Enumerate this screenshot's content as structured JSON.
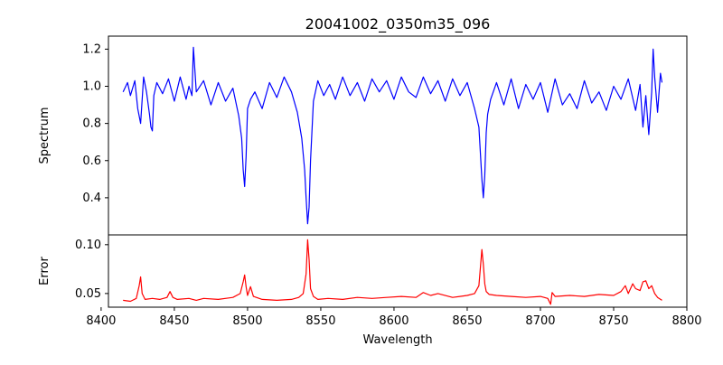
{
  "chart_data": {
    "type": "line",
    "title": "20041002_0350m35_096",
    "xlabel": "Wavelength",
    "xlim": [
      8405,
      8800
    ],
    "x_ticks": [
      8400,
      8450,
      8500,
      8550,
      8600,
      8650,
      8700,
      8750,
      8800
    ],
    "x_tick_labels": [
      "8400",
      "8450",
      "8500",
      "8550",
      "8600",
      "8650",
      "8700",
      "8750",
      "8800"
    ],
    "panels": [
      {
        "ylabel": "Spectrum",
        "ylim": [
          0.2,
          1.27
        ],
        "y_ticks": [
          0.4,
          0.6,
          0.8,
          1.0,
          1.2
        ],
        "y_tick_labels": [
          "0.4",
          "0.6",
          "0.8",
          "1.0",
          "1.2"
        ],
        "series": [
          {
            "color": "#0000ff",
            "x": [
              8415,
              8418,
              8420,
              8423,
              8425,
              8427,
              8429,
              8431,
              8433,
              8434,
              8435,
              8436,
              8438,
              8442,
              8446,
              8450,
              8454,
              8458,
              8460,
              8462,
              8463,
              8465,
              8470,
              8475,
              8480,
              8485,
              8490,
              8494,
              8496,
              8497,
              8498,
              8499,
              8500,
              8502,
              8505,
              8510,
              8515,
              8520,
              8525,
              8530,
              8534,
              8537,
              8539,
              8540,
              8541,
              8542,
              8543,
              8545,
              8548,
              8552,
              8556,
              8560,
              8565,
              8570,
              8575,
              8580,
              8585,
              8590,
              8595,
              8600,
              8605,
              8610,
              8615,
              8620,
              8625,
              8630,
              8635,
              8640,
              8645,
              8650,
              8655,
              8658,
              8660,
              8661,
              8662,
              8663,
              8664,
              8666,
              8670,
              8675,
              8680,
              8685,
              8690,
              8695,
              8700,
              8705,
              8710,
              8715,
              8720,
              8725,
              8730,
              8735,
              8740,
              8745,
              8750,
              8755,
              8760,
              8765,
              8768,
              8770,
              8772,
              8774,
              8776,
              8777,
              8778,
              8780,
              8782,
              8783
            ],
            "y": [
              0.97,
              1.02,
              0.95,
              1.03,
              0.88,
              0.8,
              1.05,
              0.97,
              0.85,
              0.78,
              0.76,
              0.95,
              1.02,
              0.96,
              1.04,
              0.92,
              1.05,
              0.93,
              1.0,
              0.95,
              1.21,
              0.97,
              1.03,
              0.9,
              1.02,
              0.92,
              0.99,
              0.84,
              0.72,
              0.55,
              0.46,
              0.62,
              0.88,
              0.93,
              0.97,
              0.88,
              1.02,
              0.94,
              1.05,
              0.97,
              0.86,
              0.72,
              0.55,
              0.4,
              0.26,
              0.35,
              0.6,
              0.92,
              1.03,
              0.95,
              1.01,
              0.93,
              1.05,
              0.95,
              1.02,
              0.92,
              1.04,
              0.97,
              1.03,
              0.93,
              1.05,
              0.97,
              0.94,
              1.05,
              0.96,
              1.03,
              0.92,
              1.04,
              0.95,
              1.02,
              0.88,
              0.78,
              0.5,
              0.4,
              0.52,
              0.75,
              0.85,
              0.93,
              1.02,
              0.9,
              1.04,
              0.88,
              1.01,
              0.93,
              1.02,
              0.86,
              1.04,
              0.9,
              0.96,
              0.88,
              1.03,
              0.91,
              0.97,
              0.87,
              1.0,
              0.93,
              1.04,
              0.87,
              1.01,
              0.78,
              0.95,
              0.74,
              0.97,
              1.2,
              1.05,
              0.86,
              1.07,
              1.02
            ]
          }
        ]
      },
      {
        "ylabel": "Error",
        "ylim": [
          0.036,
          0.11
        ],
        "y_ticks": [
          0.05,
          0.1
        ],
        "y_tick_labels": [
          "0.05",
          "0.10"
        ],
        "series": [
          {
            "color": "#ff0000",
            "x": [
              8415,
              8420,
              8424,
              8426,
              8427,
              8428,
              8430,
              8435,
              8440,
              8445,
              8447,
              8449,
              8452,
              8460,
              8465,
              8470,
              8480,
              8490,
              8495,
              8497,
              8498,
              8499,
              8500,
              8502,
              8504,
              8510,
              8520,
              8530,
              8535,
              8538,
              8540,
              8541,
              8542,
              8543,
              8545,
              8548,
              8555,
              8565,
              8575,
              8585,
              8595,
              8605,
              8615,
              8620,
              8625,
              8630,
              8640,
              8650,
              8655,
              8658,
              8660,
              8661,
              8662,
              8663,
              8665,
              8670,
              8680,
              8690,
              8700,
              8705,
              8707,
              8708,
              8710,
              8720,
              8730,
              8740,
              8750,
              8755,
              8758,
              8760,
              8763,
              8765,
              8768,
              8770,
              8772,
              8774,
              8776,
              8778,
              8780,
              8783
            ],
            "y": [
              0.043,
              0.042,
              0.045,
              0.058,
              0.067,
              0.05,
              0.044,
              0.045,
              0.044,
              0.046,
              0.052,
              0.046,
              0.044,
              0.045,
              0.043,
              0.045,
              0.044,
              0.046,
              0.05,
              0.062,
              0.069,
              0.057,
              0.048,
              0.057,
              0.047,
              0.044,
              0.043,
              0.044,
              0.046,
              0.05,
              0.07,
              0.105,
              0.085,
              0.055,
              0.047,
              0.044,
              0.045,
              0.044,
              0.046,
              0.045,
              0.046,
              0.047,
              0.046,
              0.051,
              0.048,
              0.05,
              0.046,
              0.048,
              0.05,
              0.058,
              0.095,
              0.08,
              0.06,
              0.052,
              0.049,
              0.048,
              0.047,
              0.046,
              0.047,
              0.045,
              0.039,
              0.051,
              0.047,
              0.048,
              0.047,
              0.049,
              0.048,
              0.052,
              0.058,
              0.05,
              0.06,
              0.055,
              0.053,
              0.062,
              0.063,
              0.055,
              0.058,
              0.05,
              0.046,
              0.043
            ]
          }
        ]
      }
    ]
  }
}
